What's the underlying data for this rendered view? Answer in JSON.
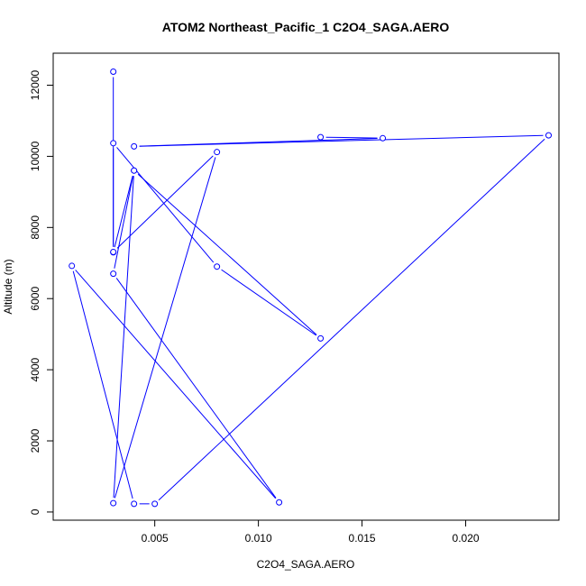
{
  "chart_data": {
    "type": "line",
    "title": "ATOM2 Northeast_Pacific_1 C2O4_SAGA.AERO",
    "xlabel": "C2O4_SAGA.AERO",
    "ylabel": "Altitude (m)",
    "xlim": [
      0.0001,
      0.0245
    ],
    "ylim": [
      -230,
      12900
    ],
    "x_ticks": [
      0.005,
      0.01,
      0.015,
      0.02
    ],
    "x_tick_labels": [
      "0.005",
      "0.010",
      "0.015",
      "0.020"
    ],
    "y_ticks": [
      0,
      2000,
      4000,
      6000,
      8000,
      10000,
      12000
    ],
    "y_tick_labels": [
      "0",
      "2000",
      "4000",
      "6000",
      "8000",
      "10000",
      "12000"
    ],
    "grid": false,
    "series": [
      {
        "color": "#0000ff",
        "marker": "open-circle",
        "points": [
          {
            "x": 0.003,
            "y": 12380
          },
          {
            "x": 0.003,
            "y": 7300
          },
          {
            "x": 0.004,
            "y": 9600
          },
          {
            "x": 0.003,
            "y": 250
          },
          {
            "x": 0.008,
            "y": 10120
          },
          {
            "x": 0.003,
            "y": 7310
          },
          {
            "x": 0.003,
            "y": 10370
          },
          {
            "x": 0.008,
            "y": 6900
          },
          {
            "x": 0.013,
            "y": 4880
          },
          {
            "x": 0.004,
            "y": 9600
          },
          {
            "x": 0.003,
            "y": 6700
          },
          {
            "x": 0.011,
            "y": 270
          },
          {
            "x": 0.001,
            "y": 6920
          },
          {
            "x": 0.004,
            "y": 230
          },
          {
            "x": 0.005,
            "y": 230
          },
          {
            "x": 0.024,
            "y": 10590
          },
          {
            "x": 0.004,
            "y": 10280
          },
          {
            "x": 0.016,
            "y": 10510
          },
          {
            "x": 0.013,
            "y": 10540
          }
        ]
      }
    ]
  }
}
